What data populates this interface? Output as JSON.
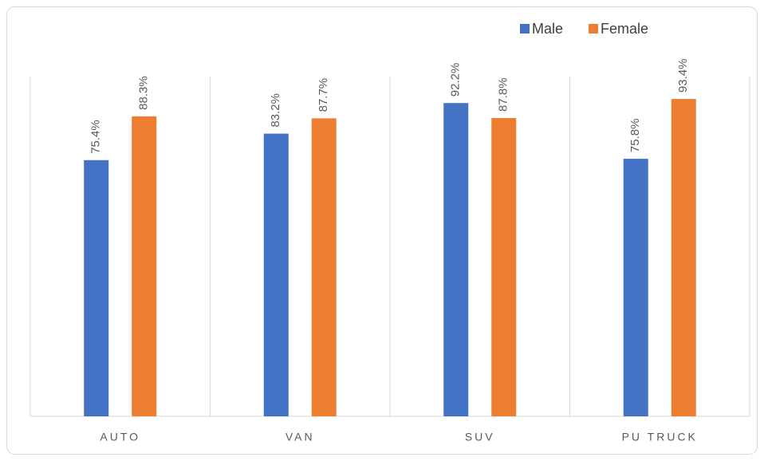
{
  "chart_data": {
    "type": "bar",
    "categories": [
      "AUTO",
      "VAN",
      "SUV",
      "PU TRUCK"
    ],
    "series": [
      {
        "name": "Male",
        "color": "#4472c4",
        "values": [
          75.4,
          83.2,
          92.2,
          75.8
        ],
        "value_labels": [
          "75.4%",
          "83.2%",
          "92.2%",
          "75.8%"
        ]
      },
      {
        "name": "Female",
        "color": "#ed7d31",
        "values": [
          88.3,
          87.7,
          87.8,
          93.4
        ],
        "value_labels": [
          "88.3%",
          "87.7%",
          "87.8%",
          "93.4%"
        ]
      }
    ],
    "ylim": [
      0,
      100
    ],
    "legend": "top-right"
  }
}
